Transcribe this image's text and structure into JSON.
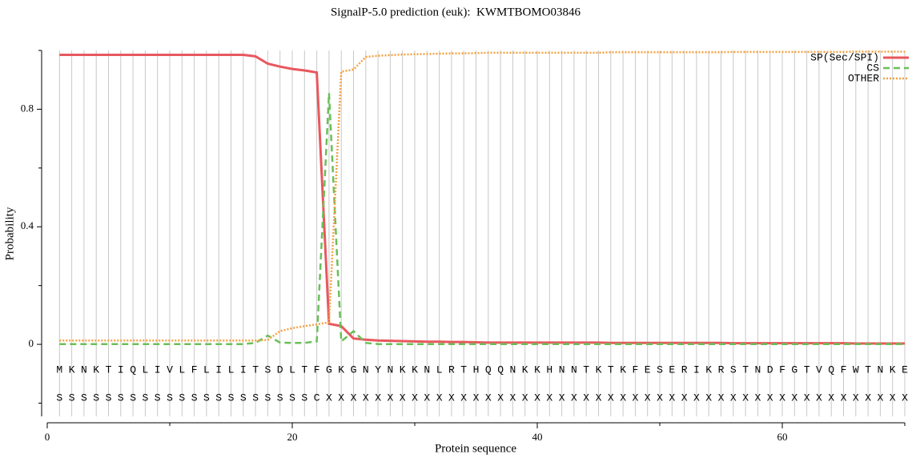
{
  "chart_data": {
    "type": "line",
    "title": "SignalP-5.0 prediction (euk):  KWMTBOMO03846",
    "xlabel": "Protein sequence",
    "ylabel": "Probability",
    "x": [
      1,
      2,
      3,
      4,
      5,
      6,
      7,
      8,
      9,
      10,
      11,
      12,
      13,
      14,
      15,
      16,
      17,
      18,
      19,
      20,
      21,
      22,
      23,
      24,
      25,
      26,
      27,
      28,
      29,
      30,
      31,
      32,
      33,
      34,
      35,
      36,
      37,
      38,
      39,
      40,
      41,
      42,
      43,
      44,
      45,
      46,
      47,
      48,
      49,
      50,
      51,
      52,
      53,
      54,
      55,
      56,
      57,
      58,
      59,
      60,
      61,
      62,
      63,
      64,
      65,
      66,
      67,
      68,
      69,
      70
    ],
    "sequence": [
      "M",
      "K",
      "N",
      "K",
      "T",
      "I",
      "Q",
      "L",
      "I",
      "V",
      "L",
      "F",
      "L",
      "I",
      "L",
      "I",
      "T",
      "S",
      "D",
      "L",
      "T",
      "F",
      "G",
      "K",
      "G",
      "N",
      "Y",
      "N",
      "K",
      "K",
      "N",
      "L",
      "R",
      "T",
      "H",
      "Q",
      "Q",
      "N",
      "K",
      "K",
      "H",
      "N",
      "N",
      "T",
      "K",
      "T",
      "K",
      "F",
      "E",
      "S",
      "E",
      "R",
      "I",
      "K",
      "R",
      "S",
      "T",
      "N",
      "D",
      "F",
      "G",
      "T",
      "V",
      "Q",
      "F",
      "W",
      "T",
      "N",
      "K",
      "E"
    ],
    "predicted_labels": [
      "S",
      "S",
      "S",
      "S",
      "S",
      "S",
      "S",
      "S",
      "S",
      "S",
      "S",
      "S",
      "S",
      "S",
      "S",
      "S",
      "S",
      "S",
      "S",
      "S",
      "S",
      "C",
      "X",
      "X",
      "X",
      "X",
      "X",
      "X",
      "X",
      "X",
      "X",
      "X",
      "X",
      "X",
      "X",
      "X",
      "X",
      "X",
      "X",
      "X",
      "X",
      "X",
      "X",
      "X",
      "X",
      "X",
      "X",
      "X",
      "X",
      "X",
      "X",
      "X",
      "X",
      "X",
      "X",
      "X",
      "X",
      "X",
      "X",
      "X",
      "X",
      "X",
      "X",
      "X",
      "X",
      "X",
      "X",
      "X",
      "X",
      "X"
    ],
    "series": [
      {
        "name": "SP(Sec/SPI)",
        "color": "#e8585e",
        "style": "solid",
        "values": [
          0.985,
          0.985,
          0.985,
          0.985,
          0.985,
          0.985,
          0.985,
          0.985,
          0.985,
          0.985,
          0.985,
          0.985,
          0.985,
          0.985,
          0.985,
          0.985,
          0.98,
          0.955,
          0.945,
          0.937,
          0.932,
          0.925,
          0.07,
          0.062,
          0.02,
          0.016,
          0.013,
          0.012,
          0.011,
          0.01,
          0.009,
          0.009,
          0.008,
          0.008,
          0.007,
          0.006,
          0.006,
          0.006,
          0.006,
          0.006,
          0.006,
          0.006,
          0.006,
          0.006,
          0.006,
          0.005,
          0.005,
          0.005,
          0.005,
          0.005,
          0.005,
          0.005,
          0.005,
          0.005,
          0.005,
          0.004,
          0.004,
          0.004,
          0.004,
          0.004,
          0.004,
          0.004,
          0.004,
          0.004,
          0.004,
          0.003,
          0.003,
          0.003,
          0.003,
          0.003
        ]
      },
      {
        "name": "CS",
        "color": "#6bbf59",
        "style": "dashed",
        "values": [
          0.001,
          0.001,
          0.001,
          0.001,
          0.001,
          0.001,
          0.001,
          0.001,
          0.001,
          0.001,
          0.001,
          0.001,
          0.001,
          0.001,
          0.001,
          0.001,
          0.005,
          0.03,
          0.006,
          0.005,
          0.005,
          0.01,
          0.855,
          0.01,
          0.045,
          0.005,
          0.001,
          0.001,
          0.001,
          0.001,
          0.001,
          0.001,
          0.001,
          0.001,
          0.001,
          0.001,
          0.001,
          0.001,
          0.001,
          0.001,
          0.001,
          0.001,
          0.001,
          0.001,
          0.001,
          0.001,
          0.001,
          0.001,
          0.001,
          0.001,
          0.001,
          0.001,
          0.001,
          0.001,
          0.001,
          0.001,
          0.001,
          0.001,
          0.001,
          0.001,
          0.001,
          0.001,
          0.001,
          0.001,
          0.001,
          0.001,
          0.001,
          0.001,
          0.001,
          0.001
        ]
      },
      {
        "name": "OTHER",
        "color": "#f5a142",
        "style": "dotted",
        "values": [
          0.013,
          0.013,
          0.013,
          0.013,
          0.013,
          0.013,
          0.013,
          0.013,
          0.013,
          0.013,
          0.013,
          0.013,
          0.013,
          0.013,
          0.013,
          0.013,
          0.013,
          0.015,
          0.045,
          0.055,
          0.062,
          0.068,
          0.075,
          0.928,
          0.935,
          0.978,
          0.982,
          0.984,
          0.986,
          0.987,
          0.988,
          0.989,
          0.99,
          0.99,
          0.991,
          0.992,
          0.992,
          0.992,
          0.992,
          0.992,
          0.992,
          0.992,
          0.992,
          0.992,
          0.992,
          0.994,
          0.994,
          0.994,
          0.994,
          0.994,
          0.994,
          0.994,
          0.994,
          0.994,
          0.994,
          0.995,
          0.995,
          0.995,
          0.995,
          0.995,
          0.995,
          0.995,
          0.995,
          0.995,
          0.995,
          0.996,
          0.996,
          0.996,
          0.996,
          0.996
        ]
      }
    ],
    "xlim": [
      0,
      70
    ],
    "xticks": [
      0,
      20,
      40,
      60
    ],
    "xminor_ticks": [
      10,
      30,
      50,
      70
    ],
    "ylim": [
      -0.245,
      1
    ],
    "yticks": [
      0,
      0.4,
      0.8
    ],
    "yminor_ticks": [
      -0.2,
      0.2,
      0.6,
      1
    ],
    "grid": true,
    "legend": "upper right"
  }
}
